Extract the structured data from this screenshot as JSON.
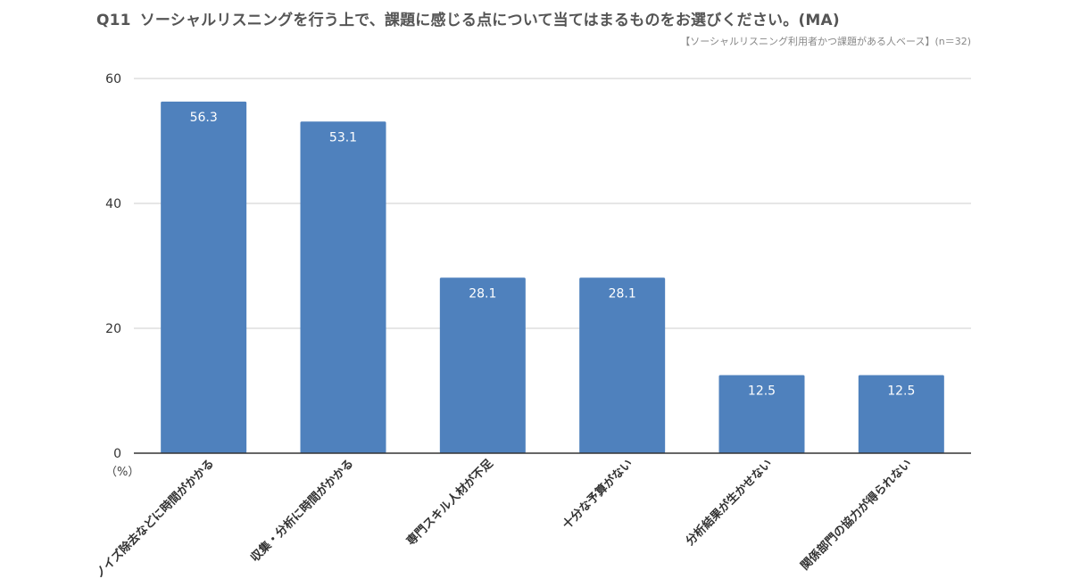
{
  "chart_data": {
    "type": "bar",
    "question_number": "Q11",
    "title": "ソーシャルリスニングを行う上で、課題に感じる点について当てはまるものをお選びください。(MA)",
    "subtitle": "【ソーシャルリスニング利用者かつ課題がある人ベース】(n＝32)",
    "unit_label": "（%）",
    "categories": [
      "ノイズ除去などに時間がかかる",
      "収集・分析に時間がかかる",
      "専門スキル人材が不足",
      "十分な予算がない",
      "分析結果が生かせない",
      "関係部門の協力が得られない"
    ],
    "values": [
      56.3,
      53.1,
      28.1,
      28.1,
      12.5,
      12.5
    ],
    "data_labels": [
      "56.3",
      "53.1",
      "28.1",
      "28.1",
      "12.5",
      "12.5"
    ],
    "y_ticks": [
      "0",
      "20",
      "40",
      "60"
    ],
    "ylim": [
      0,
      60
    ],
    "grid": true,
    "legend": "none",
    "bar_color": "#4f81bd",
    "grid_color": "#cccccc",
    "axis_color": "#333333"
  }
}
